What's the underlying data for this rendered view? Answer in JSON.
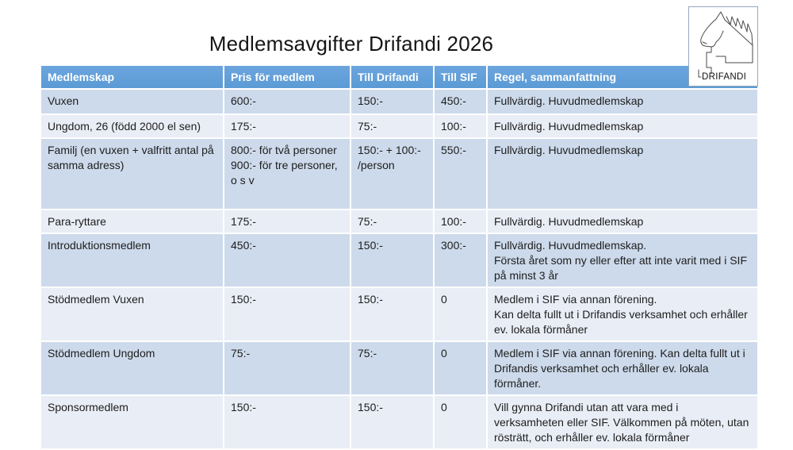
{
  "title": "Medlemsavgifter Drifandi 2026",
  "logo": {
    "icon": "horse-head-line-art",
    "text": "DRIFANDI"
  },
  "table": {
    "columns": [
      "Medlemskap",
      "Pris för medlem",
      "Till Drifandi",
      "Till SIF",
      "Regel, sammanfattning"
    ],
    "rows": [
      [
        "Vuxen",
        "600:-",
        "150:-",
        "450:-",
        "Fullvärdig. Huvudmedlemskap"
      ],
      [
        "Ungdom, 26 (född 2000 el sen)",
        "175:-",
        "75:-",
        "100:-",
        "Fullvärdig. Huvudmedlemskap"
      ],
      [
        "Familj (en vuxen + valfritt antal på samma adress)",
        "800:- för två personer\n900:- för tre personer, o s v",
        "150:- + 100:-\n/person",
        "550:-",
        "Fullvärdig. Huvudmedlemskap"
      ],
      [
        "Para-ryttare",
        "175:-",
        "75:-",
        "100:-",
        "Fullvärdig. Huvudmedlemskap"
      ],
      [
        "Introduktionsmedlem",
        "450:-",
        "150:-",
        "300:-",
        "Fullvärdig. Huvudmedlemskap.\nFörsta året som ny eller efter att inte varit med i SIF på minst 3 år"
      ],
      [
        "Stödmedlem Vuxen",
        "150:-",
        "150:-",
        "0",
        "Medlem i SIF via annan förening.\nKan delta fullt ut i Drifandis verksamhet och erhåller ev. lokala förmåner"
      ],
      [
        "Stödmedlem Ungdom",
        "75:-",
        "75:-",
        "0",
        "Medlem i SIF via annan förening. Kan delta fullt ut i Drifandis verksamhet och erhåller ev. lokala förmåner."
      ],
      [
        "Sponsormedlem",
        "150:-",
        "150:-",
        "0",
        "Vill gynna Drifandi utan att vara med i verksamheten eller SIF. Välkommen på möten, utan rösträtt, och erhåller ev. lokala förmåner"
      ]
    ]
  },
  "colors": {
    "header_bg": "#5B9BD5",
    "header_text": "#FFFFFF",
    "band_dark": "#CDDAEB",
    "band_light": "#E9EDF6"
  }
}
